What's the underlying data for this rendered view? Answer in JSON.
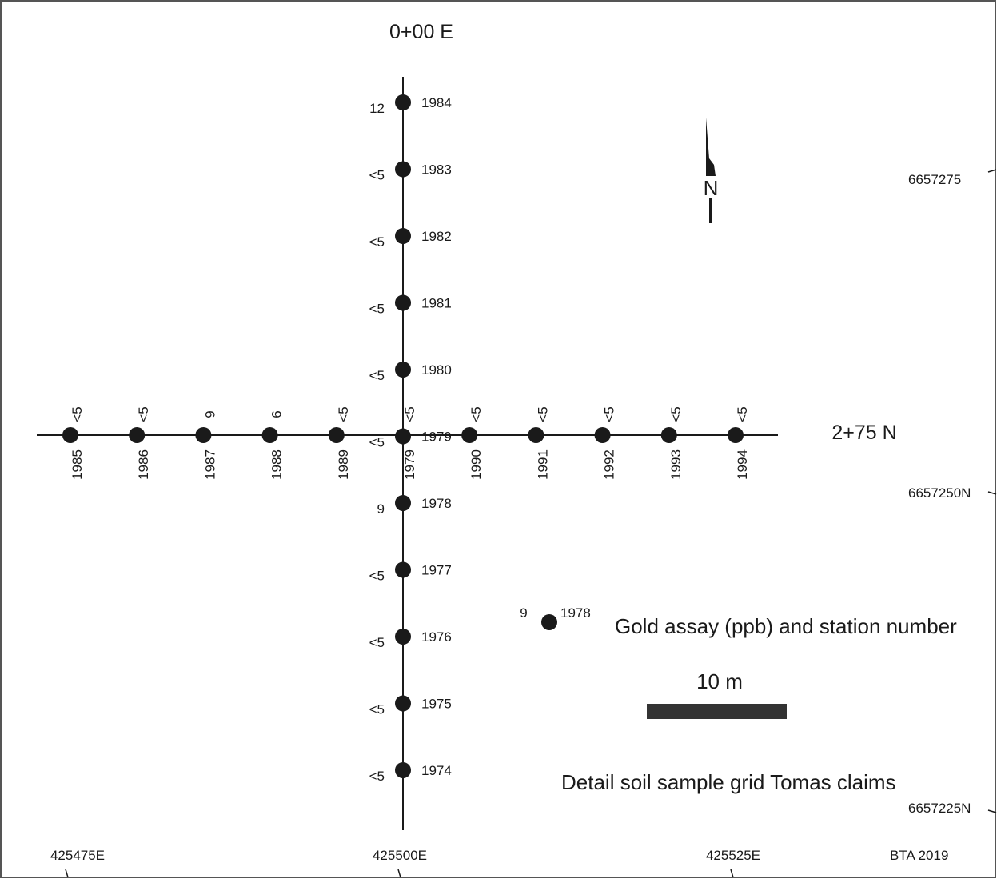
{
  "line_ns": {
    "label": "0+00 E"
  },
  "line_ew": {
    "label": "2+75 N"
  },
  "north_arrow": {
    "label": "N",
    "icon": "north-arrow-icon"
  },
  "northings": [
    {
      "label": "6657275"
    },
    {
      "label": "6657250N"
    },
    {
      "label": "6657225N"
    }
  ],
  "eastings": [
    {
      "label": "425475E"
    },
    {
      "label": "425500E"
    },
    {
      "label": "425525E"
    }
  ],
  "ns_stations": [
    {
      "station": "1984",
      "assay": "12"
    },
    {
      "station": "1983",
      "assay": "<5"
    },
    {
      "station": "1982",
      "assay": "<5"
    },
    {
      "station": "1981",
      "assay": "<5"
    },
    {
      "station": "1980",
      "assay": "<5"
    },
    {
      "station": "1979",
      "assay": "<5"
    },
    {
      "station": "1978",
      "assay": "9"
    },
    {
      "station": "1977",
      "assay": "<5"
    },
    {
      "station": "1976",
      "assay": "<5"
    },
    {
      "station": "1975",
      "assay": "<5"
    },
    {
      "station": "1974",
      "assay": "<5"
    }
  ],
  "ew_stations": [
    {
      "station": "1985",
      "assay": "<5"
    },
    {
      "station": "1986",
      "assay": "<5"
    },
    {
      "station": "1987",
      "assay": "9"
    },
    {
      "station": "1988",
      "assay": "6"
    },
    {
      "station": "1989",
      "assay": "<5"
    },
    {
      "station": "1979",
      "assay": "<5"
    },
    {
      "station": "1990",
      "assay": "<5"
    },
    {
      "station": "1991",
      "assay": "<5"
    },
    {
      "station": "1992",
      "assay": "<5"
    },
    {
      "station": "1993",
      "assay": "<5"
    },
    {
      "station": "1994",
      "assay": "<5"
    }
  ],
  "legend": {
    "example_assay": "9",
    "example_station": "1978",
    "description": "Gold assay (ppb) and station number"
  },
  "scale_bar": {
    "label": "10 m"
  },
  "title": "Detail soil sample grid Tomas claims",
  "credit": "BTA  2019",
  "colors": {
    "ink": "#1a1a1a",
    "scale_bar": "#333333",
    "frame": "#555555"
  }
}
